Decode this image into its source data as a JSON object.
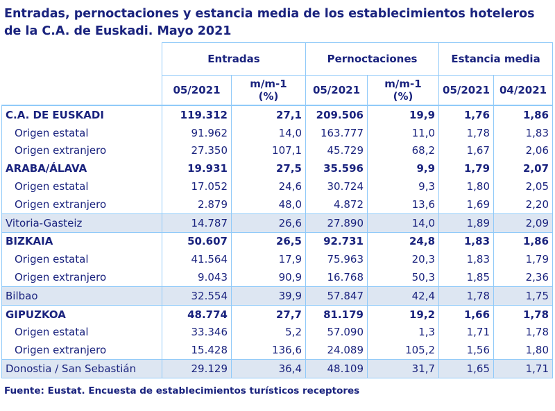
{
  "title": "Entradas, pernoctaciones y estancia media de los establecimientos hoteleros de la C.A. de Euskadi.  Mayo 2021",
  "headers": {
    "groups": [
      "Entradas",
      "Pernoctaciones",
      "Estancia media"
    ],
    "sub": [
      "05/2021",
      "m/m-1 (%)",
      "05/2021",
      "m/m-1 (%)",
      "05/2021",
      "04/2021"
    ]
  },
  "rows": [
    {
      "label": "C.A. DE EUSKADI",
      "type": "bold",
      "values": [
        "119.312",
        "27,1",
        "209.506",
        "19,9",
        "1,76",
        "1,86"
      ]
    },
    {
      "label": "Origen estatal",
      "type": "sub",
      "values": [
        "91.962",
        "14,0",
        "163.777",
        "11,0",
        "1,78",
        "1,83"
      ]
    },
    {
      "label": "Origen extranjero",
      "type": "sub",
      "values": [
        "27.350",
        "107,1",
        "45.729",
        "68,2",
        "1,67",
        "2,06"
      ]
    },
    {
      "label": "ARABA/ÁLAVA",
      "type": "bold",
      "values": [
        "19.931",
        "27,5",
        "35.596",
        "9,9",
        "1,79",
        "2,07"
      ]
    },
    {
      "label": "Origen estatal",
      "type": "sub",
      "values": [
        "17.052",
        "24,6",
        "30.724",
        "9,3",
        "1,80",
        "2,05"
      ]
    },
    {
      "label": "Origen extranjero",
      "type": "sub",
      "values": [
        "2.879",
        "48,0",
        "4.872",
        "13,6",
        "1,69",
        "2,20"
      ]
    },
    {
      "label": "Vitoria-Gasteiz",
      "type": "city",
      "values": [
        "14.787",
        "26,6",
        "27.890",
        "14,0",
        "1,89",
        "2,09"
      ]
    },
    {
      "label": "BIZKAIA",
      "type": "bold",
      "values": [
        "50.607",
        "26,5",
        "92.731",
        "24,8",
        "1,83",
        "1,86"
      ]
    },
    {
      "label": "Origen estatal",
      "type": "sub",
      "values": [
        "41.564",
        "17,9",
        "75.963",
        "20,3",
        "1,83",
        "1,79"
      ]
    },
    {
      "label": "Origen extranjero",
      "type": "sub",
      "values": [
        "9.043",
        "90,9",
        "16.768",
        "50,3",
        "1,85",
        "2,36"
      ]
    },
    {
      "label": "Bilbao",
      "type": "city",
      "values": [
        "32.554",
        "39,9",
        "57.847",
        "42,4",
        "1,78",
        "1,75"
      ]
    },
    {
      "label": "GIPUZKOA",
      "type": "bold",
      "values": [
        "48.774",
        "27,7",
        "81.179",
        "19,2",
        "1,66",
        "1,78"
      ]
    },
    {
      "label": "Origen estatal",
      "type": "sub",
      "values": [
        "33.346",
        "5,2",
        "57.090",
        "1,3",
        "1,71",
        "1,78"
      ]
    },
    {
      "label": "Origen extranjero",
      "type": "sub",
      "values": [
        "15.428",
        "136,6",
        "24.089",
        "105,2",
        "1,56",
        "1,80"
      ]
    },
    {
      "label": "Donostia / San Sebastián",
      "type": "city",
      "values": [
        "29.129",
        "36,4",
        "48.109",
        "31,7",
        "1,65",
        "1,71"
      ]
    }
  ],
  "footer": "Fuente: Eustat. Encuesta de establecimientos turísticos receptores",
  "colors": {
    "text": "#1a237e",
    "border": "#90caf9",
    "highlight": "#dde6f2"
  }
}
